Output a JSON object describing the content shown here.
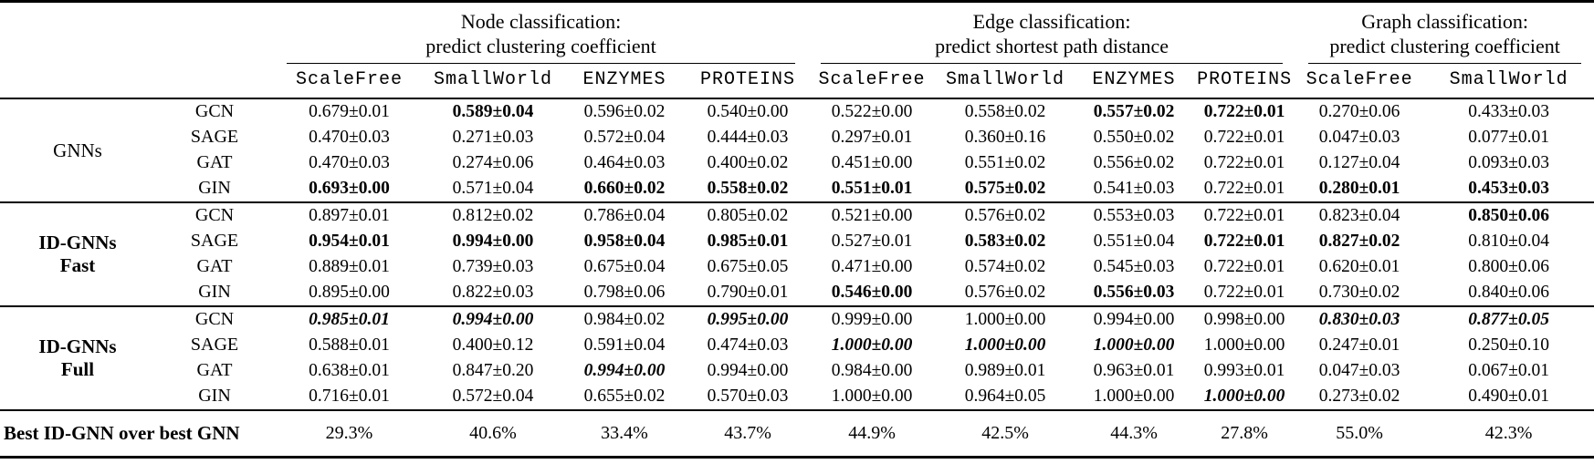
{
  "table": {
    "column_groups": [
      {
        "title": [
          "Node classification:",
          "predict clustering coefficient"
        ],
        "datasets": [
          "ScaleFree",
          "SmallWorld",
          "ENZYMES",
          "PROTEINS"
        ]
      },
      {
        "title": [
          "Edge classification:",
          "predict shortest path distance"
        ],
        "datasets": [
          "ScaleFree",
          "SmallWorld",
          "ENZYMES",
          "PROTEINS"
        ]
      },
      {
        "title": [
          "Graph classification:",
          "predict clustering coefficient"
        ],
        "datasets": [
          "ScaleFree",
          "SmallWorld"
        ]
      }
    ],
    "row_groups": [
      {
        "label": [
          "GNNs"
        ],
        "bold": false,
        "rows": [
          {
            "model": "GCN",
            "values": [
              "0.679±0.01",
              "0.589±0.04",
              "0.596±0.02",
              "0.540±0.00",
              "0.522±0.00",
              "0.558±0.02",
              "0.557±0.02",
              "0.722±0.01",
              "0.270±0.06",
              "0.433±0.03"
            ],
            "styles": [
              "n",
              "b",
              "n",
              "n",
              "n",
              "n",
              "b",
              "b",
              "n",
              "n"
            ]
          },
          {
            "model": "SAGE",
            "values": [
              "0.470±0.03",
              "0.271±0.03",
              "0.572±0.04",
              "0.444±0.03",
              "0.297±0.01",
              "0.360±0.16",
              "0.550±0.02",
              "0.722±0.01",
              "0.047±0.03",
              "0.077±0.01"
            ],
            "styles": [
              "n",
              "n",
              "n",
              "n",
              "n",
              "n",
              "n",
              "n",
              "n",
              "n"
            ]
          },
          {
            "model": "GAT",
            "values": [
              "0.470±0.03",
              "0.274±0.06",
              "0.464±0.03",
              "0.400±0.02",
              "0.451±0.00",
              "0.551±0.02",
              "0.556±0.02",
              "0.722±0.01",
              "0.127±0.04",
              "0.093±0.03"
            ],
            "styles": [
              "n",
              "n",
              "n",
              "n",
              "n",
              "n",
              "n",
              "n",
              "n",
              "n"
            ]
          },
          {
            "model": "GIN",
            "values": [
              "0.693±0.00",
              "0.571±0.04",
              "0.660±0.02",
              "0.558±0.02",
              "0.551±0.01",
              "0.575±0.02",
              "0.541±0.03",
              "0.722±0.01",
              "0.280±0.01",
              "0.453±0.03"
            ],
            "styles": [
              "b",
              "n",
              "b",
              "b",
              "b",
              "b",
              "n",
              "n",
              "b",
              "b"
            ]
          }
        ]
      },
      {
        "label": [
          "ID-GNNs",
          "Fast"
        ],
        "bold": true,
        "rows": [
          {
            "model": "GCN",
            "values": [
              "0.897±0.01",
              "0.812±0.02",
              "0.786±0.04",
              "0.805±0.02",
              "0.521±0.00",
              "0.576±0.02",
              "0.553±0.03",
              "0.722±0.01",
              "0.823±0.04",
              "0.850±0.06"
            ],
            "styles": [
              "n",
              "n",
              "n",
              "n",
              "n",
              "n",
              "n",
              "n",
              "n",
              "b"
            ]
          },
          {
            "model": "SAGE",
            "values": [
              "0.954±0.01",
              "0.994±0.00",
              "0.958±0.04",
              "0.985±0.01",
              "0.527±0.01",
              "0.583±0.02",
              "0.551±0.04",
              "0.722±0.01",
              "0.827±0.02",
              "0.810±0.04"
            ],
            "styles": [
              "b",
              "b",
              "b",
              "b",
              "n",
              "b",
              "n",
              "b",
              "b",
              "n"
            ]
          },
          {
            "model": "GAT",
            "values": [
              "0.889±0.01",
              "0.739±0.03",
              "0.675±0.04",
              "0.675±0.05",
              "0.471±0.00",
              "0.574±0.02",
              "0.545±0.03",
              "0.722±0.01",
              "0.620±0.01",
              "0.800±0.06"
            ],
            "styles": [
              "n",
              "n",
              "n",
              "n",
              "n",
              "n",
              "n",
              "n",
              "n",
              "n"
            ]
          },
          {
            "model": "GIN",
            "values": [
              "0.895±0.00",
              "0.822±0.03",
              "0.798±0.06",
              "0.790±0.01",
              "0.546±0.00",
              "0.576±0.02",
              "0.556±0.03",
              "0.722±0.01",
              "0.730±0.02",
              "0.840±0.06"
            ],
            "styles": [
              "n",
              "n",
              "n",
              "n",
              "b",
              "n",
              "b",
              "n",
              "n",
              "n"
            ]
          }
        ]
      },
      {
        "label": [
          "ID-GNNs",
          "Full"
        ],
        "bold": true,
        "rows": [
          {
            "model": "GCN",
            "values": [
              "0.985±0.01",
              "0.994±0.00",
              "0.984±0.02",
              "0.995±0.00",
              "0.999±0.00",
              "1.000±0.00",
              "0.994±0.00",
              "0.998±0.00",
              "0.830±0.03",
              "0.877±0.05"
            ],
            "styles": [
              "bi",
              "bi",
              "n",
              "bi",
              "n",
              "n",
              "n",
              "n",
              "bi",
              "bi"
            ]
          },
          {
            "model": "SAGE",
            "values": [
              "0.588±0.01",
              "0.400±0.12",
              "0.591±0.04",
              "0.474±0.03",
              "1.000±0.00",
              "1.000±0.00",
              "1.000±0.00",
              "1.000±0.00",
              "0.247±0.01",
              "0.250±0.10"
            ],
            "styles": [
              "n",
              "n",
              "n",
              "n",
              "bi",
              "bi",
              "bi",
              "n",
              "n",
              "n"
            ]
          },
          {
            "model": "GAT",
            "values": [
              "0.638±0.01",
              "0.847±0.20",
              "0.994±0.00",
              "0.994±0.00",
              "0.984±0.00",
              "0.989±0.01",
              "0.963±0.01",
              "0.993±0.01",
              "0.047±0.03",
              "0.067±0.01"
            ],
            "styles": [
              "n",
              "n",
              "bi",
              "n",
              "n",
              "n",
              "n",
              "n",
              "n",
              "n"
            ]
          },
          {
            "model": "GIN",
            "values": [
              "0.716±0.01",
              "0.572±0.04",
              "0.655±0.02",
              "0.570±0.03",
              "1.000±0.00",
              "0.964±0.05",
              "1.000±0.00",
              "1.000±0.00",
              "0.273±0.02",
              "0.490±0.01"
            ],
            "styles": [
              "n",
              "n",
              "n",
              "n",
              "n",
              "n",
              "n",
              "bi",
              "n",
              "n"
            ]
          }
        ]
      }
    ],
    "summary": {
      "label": "Best ID-GNN over best GNN",
      "values": [
        "29.3%",
        "40.6%",
        "33.4%",
        "43.7%",
        "44.9%",
        "42.5%",
        "44.3%",
        "27.8%",
        "55.0%",
        "42.3%"
      ]
    }
  }
}
